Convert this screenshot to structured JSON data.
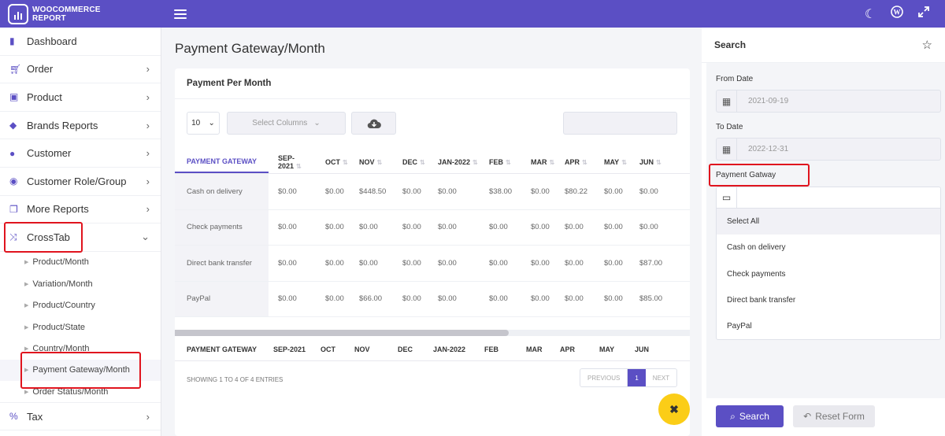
{
  "app": {
    "title_line1": "WOOCOMMERCE",
    "title_line2": "REPORT"
  },
  "topbar": {
    "icons": [
      "menu-icon",
      "moon-icon",
      "wordpress-icon",
      "expand-icon"
    ]
  },
  "sidebar": {
    "items": [
      {
        "label": "Dashboard",
        "icon": "bookmark-icon",
        "chevron": ""
      },
      {
        "label": "Order",
        "icon": "cart-icon",
        "chevron": "›"
      },
      {
        "label": "Product",
        "icon": "bag-icon",
        "chevron": "›"
      },
      {
        "label": "Brands Reports",
        "icon": "tag-icon",
        "chevron": "›"
      },
      {
        "label": "Customer",
        "icon": "user-icon",
        "chevron": "›"
      },
      {
        "label": "Customer Role/Group",
        "icon": "user-circle-icon",
        "chevron": "›"
      },
      {
        "label": "More Reports",
        "icon": "copy-icon",
        "chevron": "›"
      },
      {
        "label": "CrossTab",
        "icon": "shuffle-icon",
        "chevron": "⌄"
      }
    ],
    "subitems": [
      "Product/Month",
      "Variation/Month",
      "Product/Country",
      "Product/State",
      "Country/Month",
      "Payment Gateway/Month",
      "Order Status/Month"
    ],
    "bottom": {
      "label": "Tax",
      "icon": "percent-icon",
      "chevron": "›"
    }
  },
  "main": {
    "page_title": "Payment Gateway/Month",
    "card_title": "Payment Per Month",
    "length_value": "10",
    "select_columns": "Select Columns",
    "columns": [
      "PAYMENT GATEWAY",
      "SEP-2021",
      "OCT",
      "NOV",
      "DEC",
      "JAN-2022",
      "FEB",
      "MAR",
      "APR",
      "MAY",
      "JUN"
    ],
    "rows": [
      [
        "Cash on delivery",
        "$0.00",
        "$0.00",
        "$448.50",
        "$0.00",
        "$0.00",
        "$38.00",
        "$0.00",
        "$80.22",
        "$0.00",
        "$0.00"
      ],
      [
        "Check payments",
        "$0.00",
        "$0.00",
        "$0.00",
        "$0.00",
        "$0.00",
        "$0.00",
        "$0.00",
        "$0.00",
        "$0.00",
        "$0.00"
      ],
      [
        "Direct bank transfer",
        "$0.00",
        "$0.00",
        "$0.00",
        "$0.00",
        "$0.00",
        "$0.00",
        "$0.00",
        "$0.00",
        "$0.00",
        "$87.00"
      ],
      [
        "PayPal",
        "$0.00",
        "$0.00",
        "$66.00",
        "$0.00",
        "$0.00",
        "$0.00",
        "$0.00",
        "$0.00",
        "$0.00",
        "$85.00"
      ]
    ],
    "showing": "SHOWING 1 TO 4 OF 4 ENTRIES",
    "pager": {
      "prev": "PREVIOUS",
      "page": "1",
      "next": "NEXT"
    },
    "fab": "✖"
  },
  "search": {
    "title": "Search",
    "from_label": "From Date",
    "from_value": "2021-09-19",
    "to_label": "To Date",
    "to_value": "2022-12-31",
    "gateway_label": "Payment Gatway",
    "options": [
      "Select All",
      "Cash on delivery",
      "Check payments",
      "Direct bank transfer",
      "PayPal"
    ],
    "search_button": "Search",
    "reset_button": "Reset Form"
  }
}
